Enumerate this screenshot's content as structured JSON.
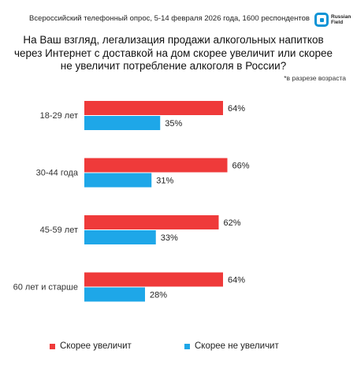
{
  "header": {
    "survey_line": "Всероссийский телефонный опрос, 5-14 февраля 2026 года, 1600 респондентов",
    "logo_text": "Russian Field",
    "logo_icon": "rf-logo-icon"
  },
  "chart_data": {
    "type": "bar",
    "orientation": "horizontal",
    "title": "На Ваш взгляд, легализация продажи алкогольных напитков через Интернет с доставкой на дом скорее увеличит или скорее не увеличит потребление алкоголя в России?",
    "note": "*в разрезе возраста",
    "categories": [
      "18-29 лет",
      "30-44 года",
      "45-59 лет",
      "60 лет и старше"
    ],
    "series": [
      {
        "name": "Скорее увеличит",
        "values": [
          64,
          66,
          62,
          64
        ],
        "color": "#ef3a3a"
      },
      {
        "name": "Скорее не увеличит",
        "values": [
          35,
          31,
          33,
          28
        ],
        "color": "#1ea7e8"
      }
    ],
    "value_suffix": "%",
    "xlim": [
      0,
      100
    ],
    "grid": false,
    "legend_position": "bottom"
  }
}
